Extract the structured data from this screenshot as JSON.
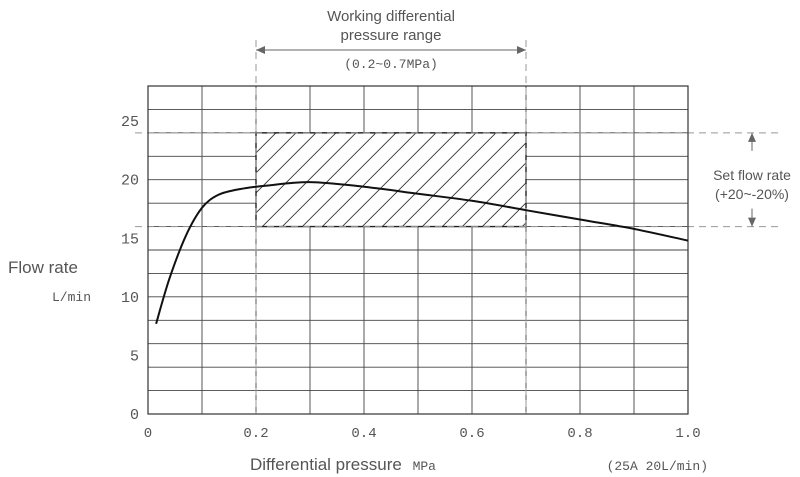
{
  "chart_data": {
    "type": "line",
    "title": "",
    "xlabel": "Differential pressure",
    "xlabel_unit": "MPa",
    "ylabel": "Flow rate",
    "ylabel_unit": "L/min",
    "xlim": [
      0,
      1.0
    ],
    "ylim": [
      0,
      28
    ],
    "x_ticks": [
      0,
      0.2,
      0.4,
      0.6,
      0.8,
      1.0
    ],
    "x_tick_labels": [
      "0",
      "0.2",
      "0.4",
      "0.6",
      "0.8",
      "1.0"
    ],
    "y_ticks": [
      0,
      5,
      10,
      15,
      20,
      25
    ],
    "y_tick_labels": [
      "0",
      "5",
      "10",
      "15",
      "20",
      "25"
    ],
    "grid": true,
    "x_grid_step": 0.1,
    "y_grid_step": 2,
    "series": [
      {
        "x": [
          0.015,
          0.04,
          0.07,
          0.1,
          0.13,
          0.17,
          0.22,
          0.3,
          0.4,
          0.5,
          0.6,
          0.7,
          0.8,
          0.9,
          1.0
        ],
        "y": [
          7.7,
          11.6,
          15.2,
          17.6,
          18.7,
          19.2,
          19.5,
          19.8,
          19.4,
          18.8,
          18.2,
          17.4,
          16.6,
          15.8,
          14.8
        ],
        "color": "#111111"
      }
    ],
    "annotations": {
      "pressure_range": {
        "line1": "Working differential",
        "line2": "pressure range",
        "line3": "(0.2~0.7MPa)",
        "x_range": [
          0.2,
          0.7
        ]
      },
      "flow_range": {
        "line1": "Set flow rate",
        "line2": "(+20~-20%)",
        "y_range": [
          16,
          24
        ]
      },
      "hatched_region": {
        "x_range": [
          0.2,
          0.7
        ],
        "y_range": [
          16,
          24
        ]
      },
      "model_note": "(25A 20L/min)"
    }
  }
}
